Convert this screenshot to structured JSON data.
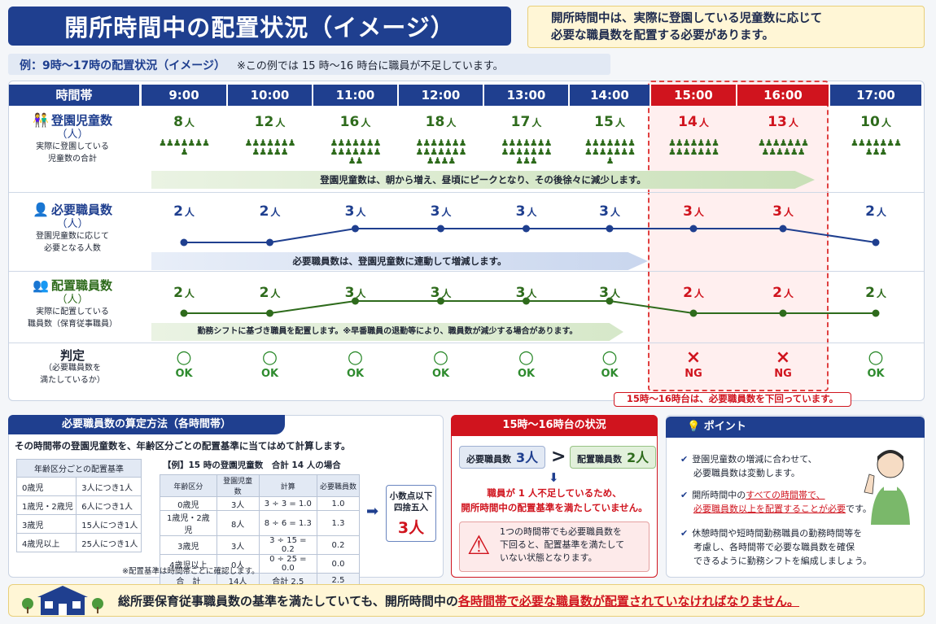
{
  "header": {
    "title": "開所時間中の配置状況（イメージ）",
    "note_line1": "開所時間中は、実際に登園している児童数に応じて",
    "note_line2": "必要な職員数を配置する必要があります。"
  },
  "example": {
    "title": "例：9時～17時の配置状況（イメージ）",
    "note": "※この例では 15 時～16 時台に職員が不足しています。"
  },
  "table": {
    "header_label": "時間帯",
    "times": [
      "9:00",
      "10:00",
      "11:00",
      "12:00",
      "13:00",
      "14:00",
      "15:00",
      "16:00",
      "17:00"
    ],
    "children": {
      "label": "登園児童数",
      "unit": "（人）",
      "desc1": "実際に登園している",
      "desc2": "児童数の合計",
      "values": [
        "8",
        "12",
        "16",
        "18",
        "17",
        "15",
        "14",
        "13",
        "10"
      ],
      "unit_suffix": "人",
      "band": "登園児童数は、朝から増え、昼頃にピークとなり、その後徐々に減少します。"
    },
    "required": {
      "label": "必要職員数",
      "unit": "（人）",
      "desc1": "登園児童数に応じて",
      "desc2": "必要となる人数",
      "values": [
        "2",
        "2",
        "3",
        "3",
        "3",
        "3",
        "3",
        "3",
        "2"
      ],
      "unit_suffix": "人",
      "band": "必要職員数は、登園児童数に連動して増減します。"
    },
    "assigned": {
      "label": "配置職員数",
      "unit": "（人）",
      "desc1": "実際に配置している",
      "desc2": "職員数（保育従事職員）",
      "values": [
        "2",
        "2",
        "3",
        "3",
        "3",
        "3",
        "2",
        "2",
        "2"
      ],
      "unit_suffix": "人",
      "band": "勤務シフトに基づき職員を配置します。※早番職員の退勤等により、職員数が減少する場合があります。"
    },
    "judge": {
      "label": "判定",
      "desc1": "（必要職員数を",
      "desc2": "満たしているか）",
      "marks": [
        "○",
        "○",
        "○",
        "○",
        "○",
        "○",
        "×",
        "×",
        "○"
      ],
      "results": [
        "OK",
        "OK",
        "OK",
        "OK",
        "OK",
        "OK",
        "NG",
        "NG",
        "OK"
      ]
    },
    "ng_note": "15時～16時台は、必要職員数を下回っています。"
  },
  "calc": {
    "title": "必要職員数の算定方法（各時間帯）",
    "desc": "その時間帯の登園児童数を、年齢区分ごとの配置基準に当てはめて計算します。",
    "ratio_header": "年齢区分ごとの配置基準",
    "ratios": [
      [
        "0歳児",
        "3人につき1人"
      ],
      [
        "1歳児・2歳児",
        "6人につき1人"
      ],
      [
        "3歳児",
        "15人につき1人"
      ],
      [
        "4歳児以上",
        "25人につき1人"
      ]
    ],
    "example_title": "【例】15 時の登園児童数　合計 14 人の場合",
    "example_headers": [
      "年齢区分",
      "登園児童数",
      "計算",
      "必要職員数"
    ],
    "example_rows": [
      [
        "0歳児",
        "3人",
        "3 ÷ 3 = 1.0",
        "1.0"
      ],
      [
        "1歳児・2歳児",
        "8人",
        "8 ÷ 6 = 1.3",
        "1.3"
      ],
      [
        "3歳児",
        "3人",
        "3 ÷ 15 = 0.2",
        "0.2"
      ],
      [
        "4歳児以上",
        "0人",
        "0 ÷ 25 = 0.0",
        "0.0"
      ],
      [
        "合　計",
        "14人",
        "合計 2.5",
        "2.5"
      ]
    ],
    "result_label1": "小数点以下",
    "result_label2": "四捨五入",
    "result_value": "3人",
    "footnote": "※配置基準は時間帯ごとに確認します。"
  },
  "situation": {
    "title": "15時～16時台の状況",
    "req_label": "必要職員数",
    "req_value": "3人",
    "act_label": "配置職員数",
    "act_value": "2人",
    "msg1": "職員が 1 人不足しているため、",
    "msg2": "開所時間中の配置基準を満たしていません。",
    "warn1": "1つの時間帯でも必要職員数を",
    "warn2": "下回ると、配置基準を満たして",
    "warn3": "いない状態となります。"
  },
  "points": {
    "title": "ポイント",
    "p1a": "登園児童数の増減に合わせて、",
    "p1b": "必要職員数は変動します。",
    "p2a": "開所時間中の",
    "p2b": "すべての時間帯で、",
    "p2c": "必要職員数以上を配置することが必要",
    "p2d": "です。",
    "p3a": "休憩時間や短時間勤務職員の勤務時間等を",
    "p3b": "考慮し、各時間帯で必要な職員数を確保",
    "p3c": "できるように勤務シフトを編成しましょう。"
  },
  "footer": {
    "text1": "総所要保育従事職員数の基準を満たしていても、開所時間中の",
    "text2": "各時間帯で必要な職員数が配置されていなければなりません。"
  },
  "colors": {
    "navy": "#1f3f8f",
    "red": "#d0141e",
    "green": "#2e6b1c"
  }
}
